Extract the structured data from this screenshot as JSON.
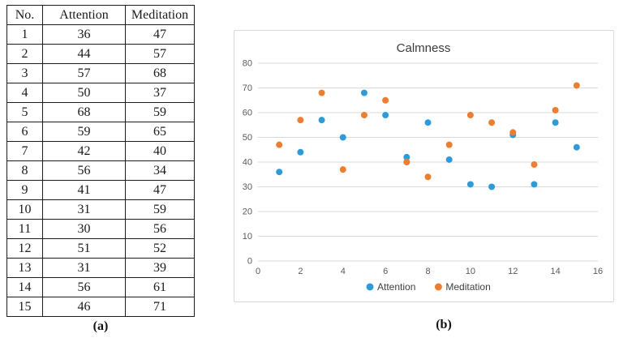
{
  "figure": {
    "caption_a": "(a)",
    "caption_b": "(b)"
  },
  "table": {
    "headers": [
      "No.",
      "Attention",
      "Meditation"
    ],
    "rows": [
      [
        1,
        36,
        47
      ],
      [
        2,
        44,
        57
      ],
      [
        3,
        57,
        68
      ],
      [
        4,
        50,
        37
      ],
      [
        5,
        68,
        59
      ],
      [
        6,
        59,
        65
      ],
      [
        7,
        42,
        40
      ],
      [
        8,
        56,
        34
      ],
      [
        9,
        41,
        47
      ],
      [
        10,
        31,
        59
      ],
      [
        11,
        30,
        56
      ],
      [
        12,
        51,
        52
      ],
      [
        13,
        31,
        39
      ],
      [
        14,
        56,
        61
      ],
      [
        15,
        46,
        71
      ]
    ]
  },
  "chart_data": {
    "type": "scatter",
    "title": "Calmness",
    "x": [
      1,
      2,
      3,
      4,
      5,
      6,
      7,
      8,
      9,
      10,
      11,
      12,
      13,
      14,
      15
    ],
    "series": [
      {
        "name": "Attention",
        "color": "#2e9bd9",
        "values": [
          36,
          44,
          57,
          50,
          68,
          59,
          42,
          56,
          41,
          31,
          30,
          51,
          31,
          56,
          46
        ]
      },
      {
        "name": "Meditation",
        "color": "#ed7d31",
        "values": [
          47,
          57,
          68,
          37,
          59,
          65,
          40,
          34,
          47,
          59,
          56,
          52,
          39,
          61,
          71
        ]
      }
    ],
    "xlim": [
      0,
      16
    ],
    "ylim": [
      0,
      80
    ],
    "x_ticks": [
      0,
      2,
      4,
      6,
      8,
      10,
      12,
      14,
      16
    ],
    "y_ticks": [
      0,
      10,
      20,
      30,
      40,
      50,
      60,
      70,
      80
    ],
    "grid": "horizontal",
    "gridline_color": "#d9d9d9",
    "tick_label_color": "#595959",
    "title_color": "#3b3b3b",
    "legend_position": "bottom",
    "legend_text_color": "#404040"
  }
}
